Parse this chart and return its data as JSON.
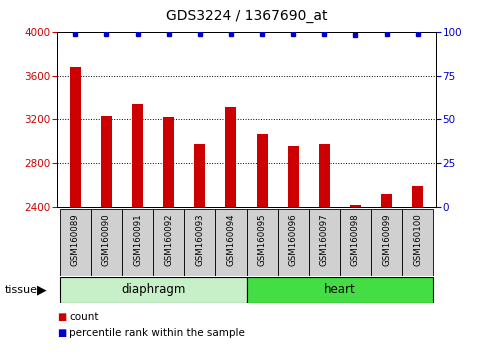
{
  "title": "GDS3224 / 1367690_at",
  "samples": [
    "GSM160089",
    "GSM160090",
    "GSM160091",
    "GSM160092",
    "GSM160093",
    "GSM160094",
    "GSM160095",
    "GSM160096",
    "GSM160097",
    "GSM160098",
    "GSM160099",
    "GSM160100"
  ],
  "counts": [
    3680,
    3230,
    3340,
    3220,
    2975,
    3315,
    3065,
    2960,
    2975,
    2418,
    2520,
    2590
  ],
  "percentiles": [
    99,
    99,
    99,
    99,
    99,
    99,
    99,
    99,
    99,
    98,
    99,
    99
  ],
  "bar_color": "#CC0000",
  "dot_color": "#0000CC",
  "bg_color": "#FFFFFF",
  "ylim": [
    2400,
    4000
  ],
  "y_ticks_left": [
    2400,
    2800,
    3200,
    3600,
    4000
  ],
  "y_ticks_right": [
    0,
    25,
    50,
    75,
    100
  ],
  "legend_count_label": "count",
  "legend_pct_label": "percentile rank within the sample",
  "tissue_label": "tissue",
  "diaphragm_color": "#C8F0C8",
  "heart_color": "#44DD44",
  "label_bg": "#D0D0D0"
}
